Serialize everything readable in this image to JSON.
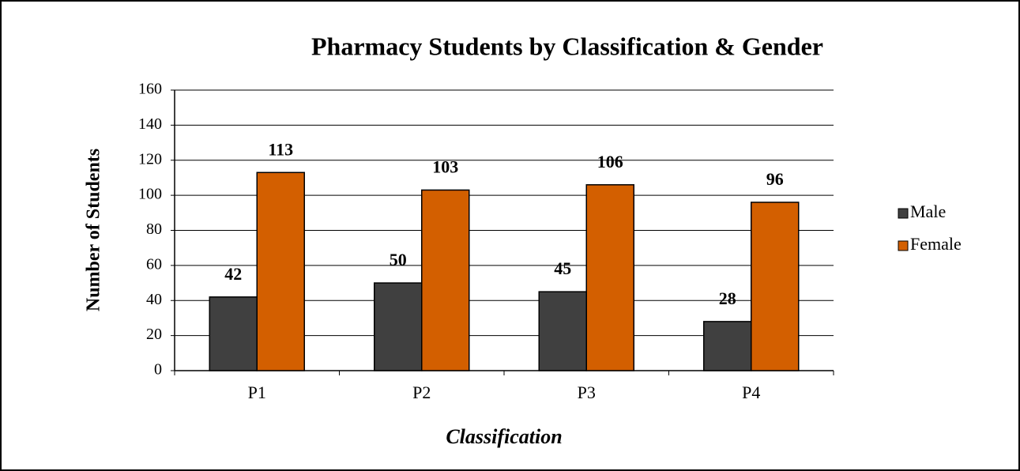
{
  "chart_data": {
    "type": "bar",
    "title": "Pharmacy Students by Classification & Gender",
    "x_label": "Classification",
    "y_label": "Number of Students",
    "categories": [
      "P1",
      "P2",
      "P3",
      "P4"
    ],
    "series": [
      {
        "name": "Male",
        "color": "#404040",
        "values": [
          42,
          50,
          45,
          28
        ]
      },
      {
        "name": "Female",
        "color": "#d35f00",
        "values": [
          113,
          103,
          106,
          96
        ]
      }
    ],
    "ylim": [
      0,
      160
    ],
    "yticks": [
      0,
      20,
      40,
      60,
      80,
      100,
      120,
      140,
      160
    ],
    "grid": true,
    "legend": "right"
  }
}
